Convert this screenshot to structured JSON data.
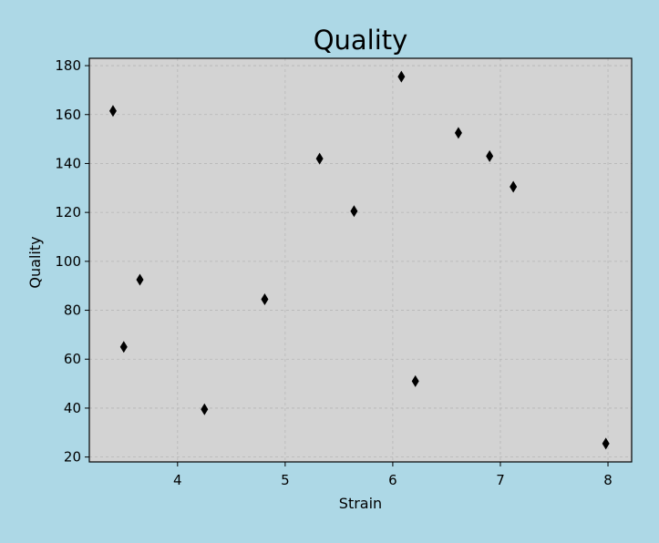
{
  "chart_data": {
    "type": "scatter",
    "title": "Quality",
    "xlabel": "Strain",
    "ylabel": "Quality",
    "xlim": [
      3.18,
      8.22
    ],
    "ylim": [
      18,
      183
    ],
    "xticks": [
      4,
      5,
      6,
      7,
      8
    ],
    "yticks": [
      20,
      40,
      60,
      80,
      100,
      120,
      140,
      160,
      180
    ],
    "grid": true,
    "marker": "thin-diamond",
    "colors": {
      "page_background": "#add8e6",
      "plot_background": "#d3d3d3",
      "grid": "#b0b0b0",
      "marker": "#000000"
    },
    "x": [
      3.4,
      3.5,
      3.65,
      4.25,
      4.81,
      5.32,
      5.64,
      6.08,
      6.21,
      6.61,
      6.9,
      7.12,
      7.98
    ],
    "y": [
      161.5,
      65,
      92.5,
      39.5,
      84.5,
      142,
      120.5,
      175.5,
      51,
      152.5,
      143,
      130.5,
      25.5
    ]
  }
}
